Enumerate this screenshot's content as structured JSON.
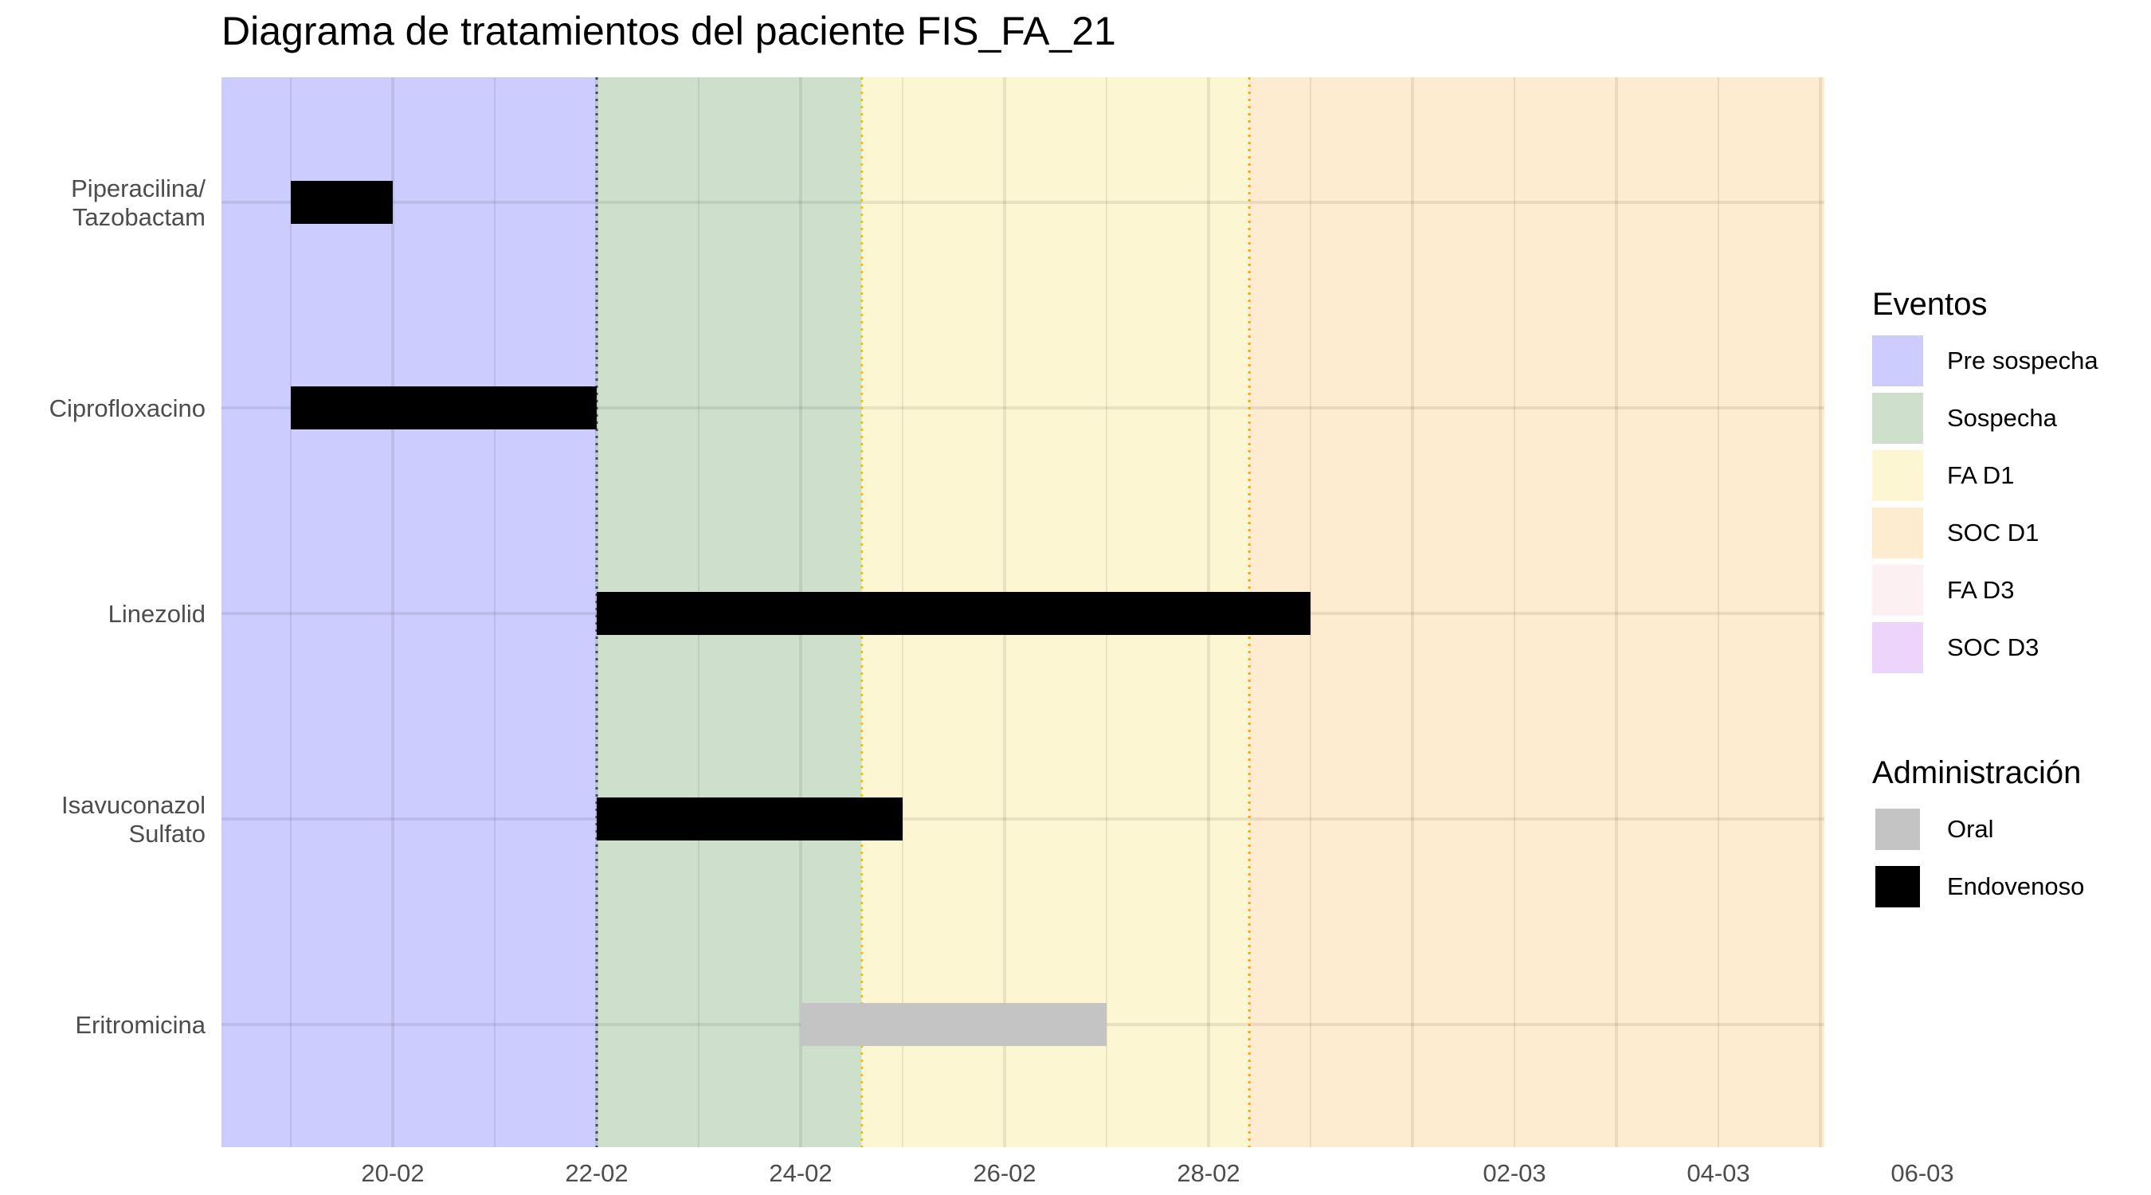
{
  "title": "Diagrama de tratamientos del paciente FIS_FA_21",
  "chart_data": {
    "type": "gantt",
    "title": "Diagrama de tratamientos del paciente FIS_FA_21",
    "xlim": [
      "2024-02-18",
      "2024-03-06"
    ],
    "x_ticks": [
      {
        "date": "2024-02-20",
        "label": "20-02"
      },
      {
        "date": "2024-02-22",
        "label": "22-02"
      },
      {
        "date": "2024-02-24",
        "label": "24-02"
      },
      {
        "date": "2024-02-26",
        "label": "26-02"
      },
      {
        "date": "2024-02-28",
        "label": "28-02"
      },
      {
        "date": "2024-03-02",
        "label": "02-03"
      },
      {
        "date": "2024-03-04",
        "label": "04-03"
      },
      {
        "date": "2024-03-06",
        "label": "06-03"
      }
    ],
    "phases": [
      {
        "name": "Pre sospecha",
        "start": "2024-02-18",
        "end": "2024-02-22",
        "color": "#ccccff"
      },
      {
        "name": "Sospecha",
        "start": "2024-02-22",
        "end": "2024-02-24.6",
        "color": "#cee0cc"
      },
      {
        "name": "FA D1",
        "start": "2024-02-24.6",
        "end": "2024-02-28.4",
        "color": "#fdf6d2"
      },
      {
        "name": "SOC D1",
        "start": "2024-02-28.4",
        "end": "2024-03-06",
        "color": "#feecd0"
      }
    ],
    "event_lines": [
      {
        "date": "2024-02-22",
        "color": "#3c4a5a"
      },
      {
        "date": "2024-02-24.6",
        "color": "#f2c200"
      },
      {
        "date": "2024-02-28.4",
        "color": "#ffa500"
      }
    ],
    "treatments": [
      {
        "label": "Piperacilina/\nTazobactam",
        "start": "2024-02-19",
        "end": "2024-02-20",
        "route": "Endovenoso"
      },
      {
        "label": "Ciprofloxacino",
        "start": "2024-02-19",
        "end": "2024-02-22",
        "route": "Endovenoso"
      },
      {
        "label": "Linezolid",
        "start": "2024-02-22",
        "end": "2024-02-29",
        "route": "Endovenoso"
      },
      {
        "label": "Isavuconazol\nSulfato",
        "start": "2024-02-22",
        "end": "2024-02-25",
        "route": "Endovenoso"
      },
      {
        "label": "Eritromicina",
        "start": "2024-02-24",
        "end": "2024-02-27",
        "route": "Oral"
      }
    ],
    "legend_eventos": {
      "title": "Eventos",
      "items": [
        {
          "label": "Pre sospecha",
          "color": "#ccccff"
        },
        {
          "label": "Sospecha",
          "color": "#cee0cc"
        },
        {
          "label": "FA D1",
          "color": "#fdf6d2"
        },
        {
          "label": "SOC D1",
          "color": "#feecd0"
        },
        {
          "label": "FA D3",
          "color": "#fdf0f2"
        },
        {
          "label": "SOC D3",
          "color": "#ecd4fb"
        }
      ]
    },
    "legend_administracion": {
      "title": "Administración",
      "items": [
        {
          "label": "Oral",
          "color": "#c4c4c4"
        },
        {
          "label": "Endovenoso",
          "color": "#000000"
        }
      ]
    },
    "legend_placement": "right"
  }
}
